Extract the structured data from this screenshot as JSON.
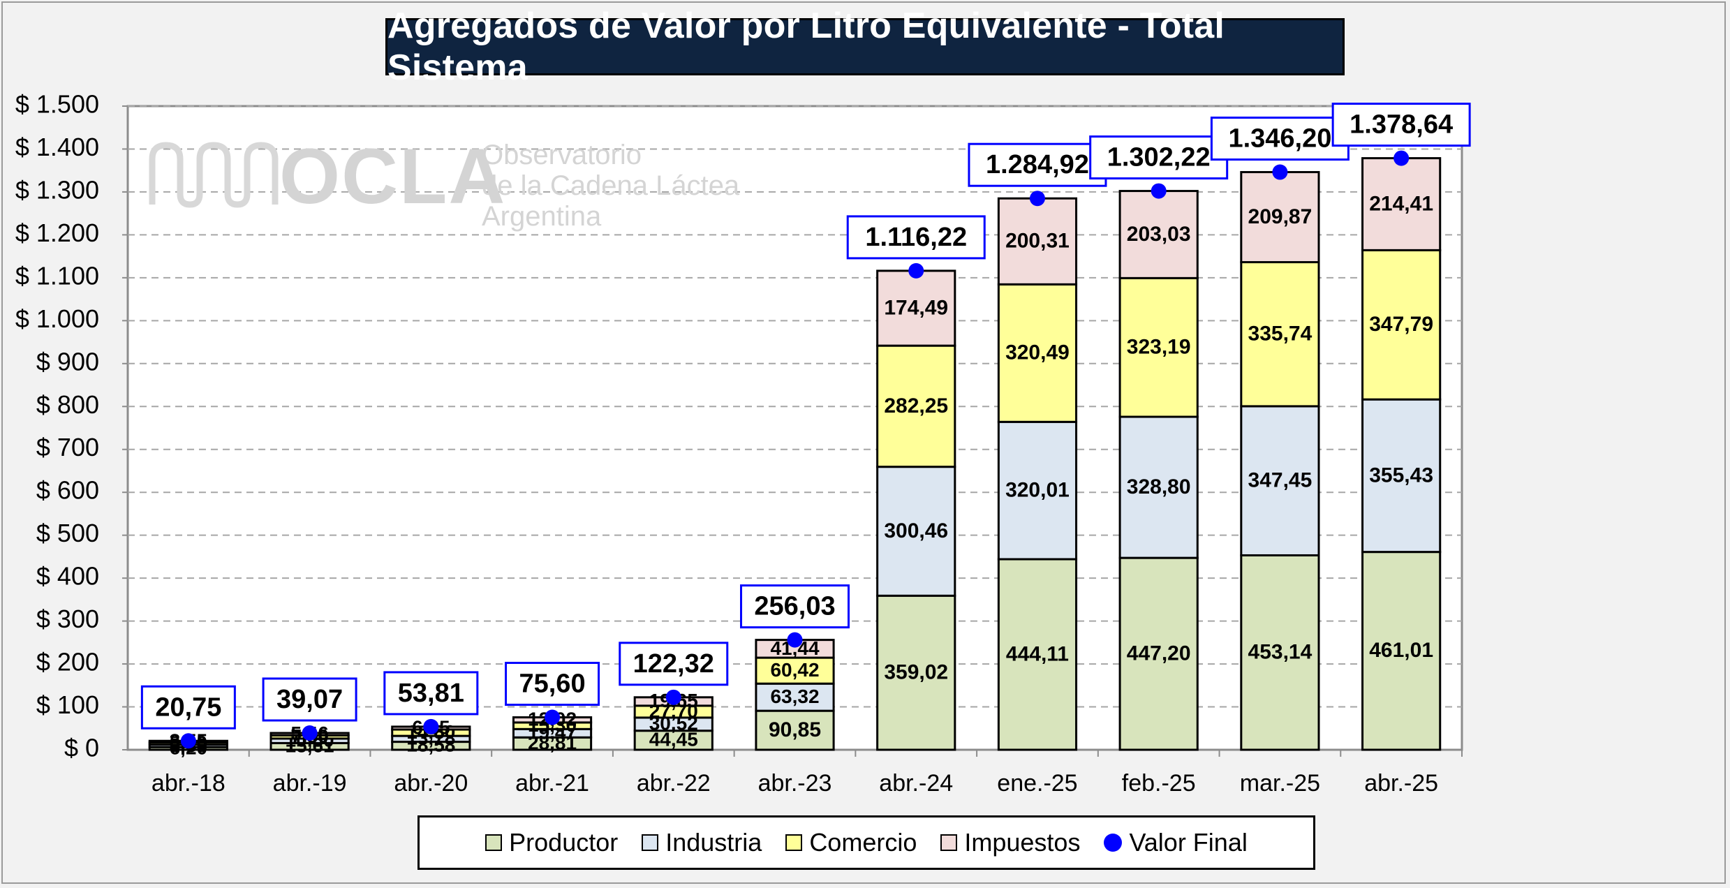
{
  "title": "Agregados de Valor por Litro Equivalente - Total Sistema",
  "watermark": {
    "brand": "OCLA",
    "line1": "Observatorio",
    "line2": "de la Cadena Láctea",
    "line3": "Argentina"
  },
  "colors": {
    "Productor": "#d8e4bc",
    "Industria": "#dce6f1",
    "Comercio": "#ffff99",
    "Impuestos": "#f2dcdb",
    "Valor Final": "#0000ff",
    "title_bg": "#0f2440"
  },
  "legend": {
    "items": [
      {
        "label": "Productor",
        "kind": "swatch"
      },
      {
        "label": "Industria",
        "kind": "swatch"
      },
      {
        "label": "Comercio",
        "kind": "swatch"
      },
      {
        "label": "Impuestos",
        "kind": "swatch"
      },
      {
        "label": "Valor Final",
        "kind": "dot"
      }
    ]
  },
  "chart_data": {
    "type": "bar",
    "stacked": true,
    "title": "Agregados de Valor por Litro Equivalente - Total Sistema",
    "categories": [
      "abr.-18",
      "abr.-19",
      "abr.-20",
      "abr.-21",
      "abr.-22",
      "abr.-23",
      "abr.-24",
      "ene.-25",
      "feb.-25",
      "mar.-25",
      "abr.-25"
    ],
    "series": [
      {
        "name": "Productor",
        "values": [
          6.2,
          15.61,
          18.58,
          28.81,
          44.45,
          90.85,
          359.02,
          444.11,
          447.2,
          453.14,
          461.01
        ],
        "labels": [
          "6,20",
          "15,61",
          "18,58",
          "28,81",
          "44,45",
          "90,85",
          "359,02",
          "444,11",
          "447,20",
          "453,14",
          "461,01"
        ]
      },
      {
        "name": "Industria",
        "values": [
          5.8,
          10.5,
          13.78,
          19.47,
          30.52,
          63.32,
          300.46,
          320.01,
          328.8,
          347.45,
          355.43
        ],
        "labels": [
          "5,80",
          "10,50",
          "13,78",
          "19,47",
          "30,52",
          "63,32",
          "300,46",
          "320,01",
          "328,80",
          "347,45",
          "355,43"
        ]
      },
      {
        "name": "Comercio",
        "values": [
          5.2,
          7.5,
          14.8,
          15.3,
          27.7,
          60.42,
          282.25,
          320.49,
          323.19,
          335.74,
          347.79
        ],
        "labels": [
          "5,20",
          "7,50",
          "14,80",
          "15,30",
          "27,70",
          "60,42",
          "282,25",
          "320,49",
          "323,19",
          "335,74",
          "347,79"
        ]
      },
      {
        "name": "Impuestos",
        "values": [
          3.55,
          5.46,
          6.65,
          12.02,
          19.65,
          41.44,
          174.49,
          200.31,
          203.03,
          209.87,
          214.41
        ],
        "labels": [
          "3,55",
          "5,46",
          "6,65",
          "12,02",
          "19,65",
          "41,44",
          "174,49",
          "200,31",
          "203,03",
          "209,87",
          "214,41"
        ]
      }
    ],
    "valor_final": {
      "name": "Valor Final",
      "values": [
        20.75,
        39.07,
        53.81,
        75.6,
        122.32,
        256.03,
        1116.22,
        1284.92,
        1302.22,
        1346.2,
        1378.64
      ],
      "labels": [
        "20,75",
        "39,07",
        "53,81",
        "75,60",
        "122,32",
        "256,03",
        "1.116,22",
        "1.284,92",
        "1.302,22",
        "1.346,20",
        "1.378,64"
      ]
    },
    "ylim": [
      0,
      1500
    ],
    "yticks": [
      0,
      100,
      200,
      300,
      400,
      500,
      600,
      700,
      800,
      900,
      1000,
      1100,
      1200,
      1300,
      1400,
      1500
    ],
    "ytick_labels": [
      "$ 0",
      "$ 100",
      "$ 200",
      "$ 300",
      "$ 400",
      "$ 500",
      "$ 600",
      "$ 700",
      "$ 800",
      "$ 900",
      "$ 1.000",
      "$ 1.100",
      "$ 1.200",
      "$ 1.300",
      "$ 1.400",
      "$ 1.500"
    ],
    "grid": true,
    "legend_position": "bottom"
  }
}
